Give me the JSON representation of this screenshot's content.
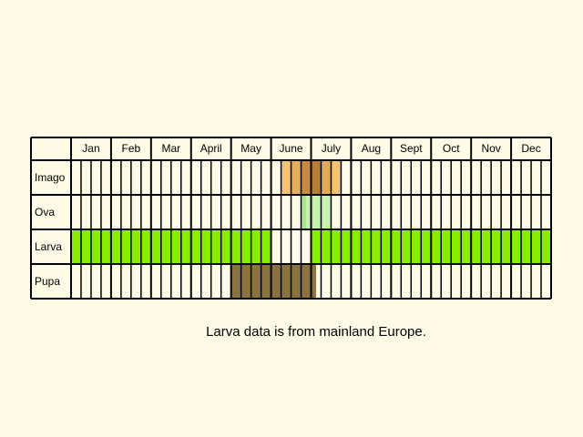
{
  "chart_data": {
    "type": "table",
    "title": "",
    "months": [
      "Jan",
      "Feb",
      "Mar",
      "April",
      "May",
      "June",
      "July",
      "Aug",
      "Sept",
      "Oct",
      "Nov",
      "Dec"
    ],
    "weeks_per_month": 4,
    "rows": [
      {
        "label": "Imago",
        "periods": [
          {
            "start_week": 21,
            "end_week": 22,
            "color": "#f2c372"
          },
          {
            "start_week": 22,
            "end_week": 23,
            "color": "#e5ad60"
          },
          {
            "start_week": 23,
            "end_week": 24,
            "color": "#c88a3e"
          },
          {
            "start_week": 24,
            "end_week": 25,
            "color": "#b67d36"
          },
          {
            "start_week": 25,
            "end_week": 26,
            "color": "#e3a858"
          },
          {
            "start_week": 26,
            "end_week": 27,
            "color": "#f2c372"
          }
        ]
      },
      {
        "label": "Ova",
        "periods": [
          {
            "start_week": 23,
            "end_week": 23.5,
            "color": "#a9e58f"
          },
          {
            "start_week": 23.5,
            "end_week": 26,
            "color": "#c6f2b0"
          }
        ]
      },
      {
        "label": "Larva",
        "periods": [
          {
            "start_week": 0,
            "end_week": 20,
            "color": "#88ee00"
          },
          {
            "start_week": 24,
            "end_week": 48,
            "color": "#88ee00"
          }
        ]
      },
      {
        "label": "Pupa",
        "periods": [
          {
            "start_week": 16,
            "end_week": 24.5,
            "color": "#8b7340"
          }
        ]
      }
    ]
  },
  "caption": "Larva data is from mainland Europe."
}
